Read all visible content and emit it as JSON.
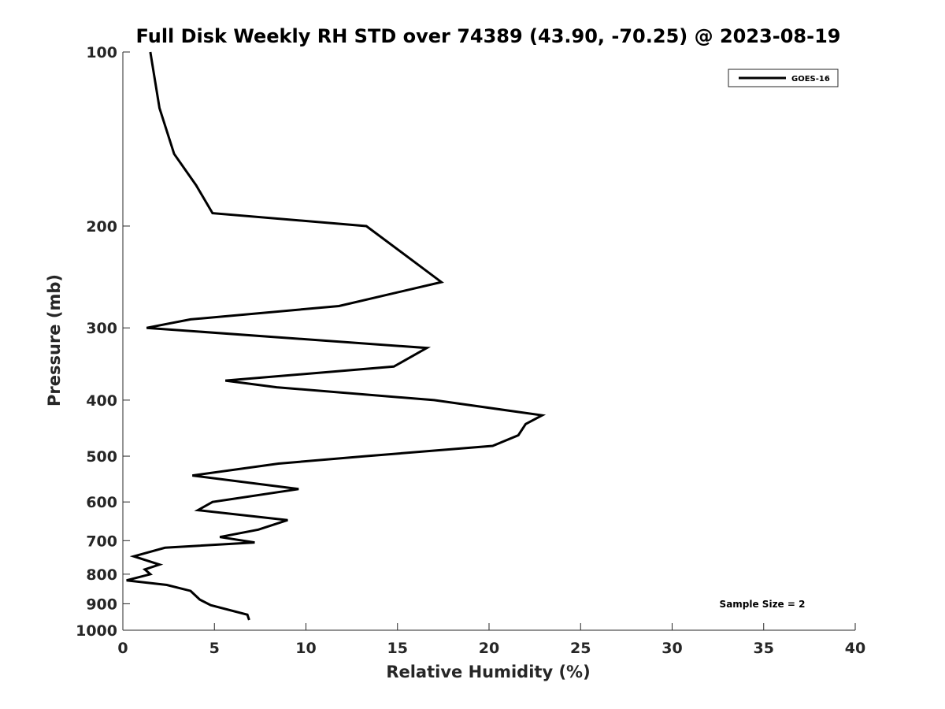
{
  "chart_data": {
    "type": "line",
    "title": "Full Disk Weekly RH STD over 74389 (43.90, -70.25) @ 2023-08-19",
    "xlabel": "Relative Humidity (%)",
    "ylabel": "Pressure (mb)",
    "xlim": [
      0,
      40
    ],
    "ylim": [
      100,
      1000
    ],
    "y_scale": "log",
    "y_reversed": true,
    "x_ticks": [
      "0",
      "5",
      "10",
      "15",
      "20",
      "25",
      "30",
      "35",
      "40"
    ],
    "y_ticks": [
      "100",
      "200",
      "300",
      "400",
      "500",
      "600",
      "700",
      "800",
      "900",
      "1000"
    ],
    "grid": false,
    "legend_position": "top-right",
    "annotation": "Sample Size = 2",
    "series": [
      {
        "name": "GOES-16",
        "color": "#000000",
        "points": [
          [
            1.5,
            100
          ],
          [
            2.0,
            125
          ],
          [
            2.8,
            150
          ],
          [
            4.0,
            170
          ],
          [
            4.9,
            190
          ],
          [
            13.3,
            200
          ],
          [
            17.4,
            250
          ],
          [
            11.8,
            275
          ],
          [
            3.7,
            290
          ],
          [
            1.3,
            300
          ],
          [
            16.6,
            325
          ],
          [
            14.8,
            350
          ],
          [
            5.6,
            370
          ],
          [
            8.4,
            380
          ],
          [
            17.0,
            400
          ],
          [
            22.9,
            425
          ],
          [
            22.0,
            440
          ],
          [
            21.6,
            460
          ],
          [
            20.2,
            480
          ],
          [
            13.3,
            500
          ],
          [
            8.5,
            515
          ],
          [
            3.8,
            540
          ],
          [
            9.6,
            570
          ],
          [
            4.9,
            600
          ],
          [
            4.1,
            620
          ],
          [
            9.0,
            645
          ],
          [
            7.4,
            670
          ],
          [
            5.3,
            690
          ],
          [
            7.2,
            705
          ],
          [
            2.3,
            720
          ],
          [
            0.6,
            745
          ],
          [
            2.0,
            770
          ],
          [
            1.2,
            785
          ],
          [
            1.5,
            800
          ],
          [
            0.2,
            820
          ],
          [
            2.4,
            835
          ],
          [
            3.7,
            855
          ],
          [
            4.2,
            885
          ],
          [
            4.8,
            905
          ],
          [
            6.8,
            940
          ],
          [
            6.9,
            960
          ]
        ]
      }
    ]
  }
}
